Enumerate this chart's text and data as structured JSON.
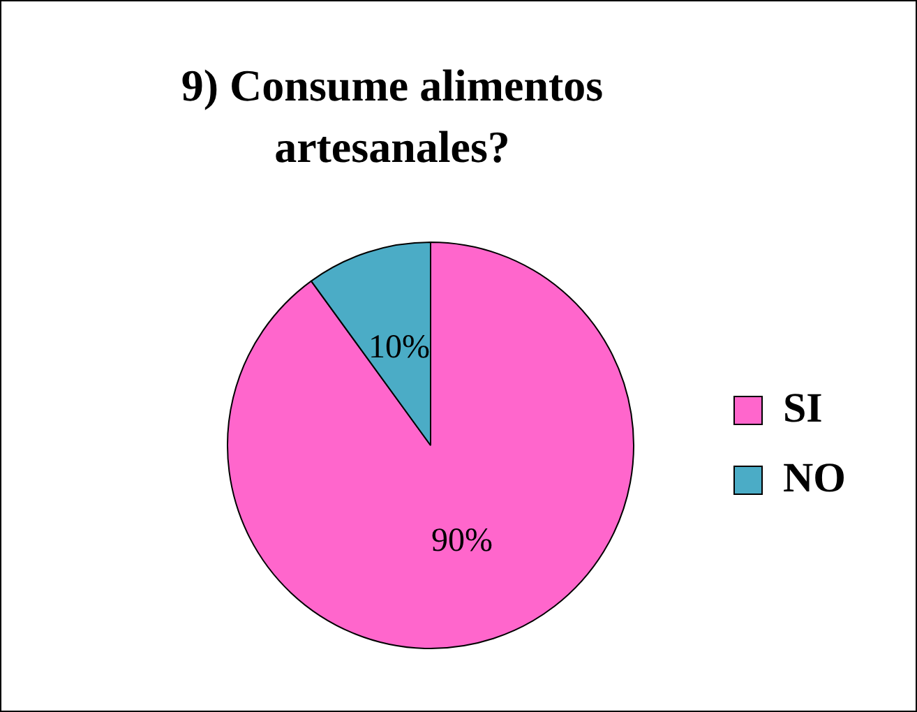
{
  "chart_data": {
    "type": "pie",
    "title": "9) Consume alimentos artesanales?",
    "categories": [
      "SI",
      "NO"
    ],
    "values": [
      90,
      10
    ],
    "colors": [
      "#ff66cc",
      "#4bacc6"
    ],
    "value_labels": [
      "90%",
      "10%"
    ],
    "legend": "right"
  }
}
